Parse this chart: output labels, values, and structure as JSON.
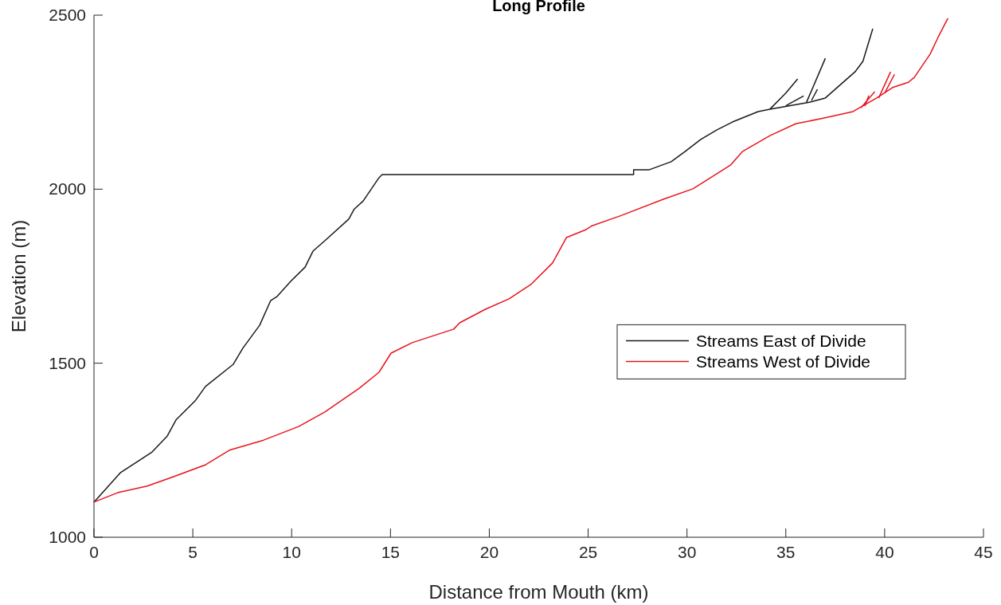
{
  "chart_data": {
    "type": "line",
    "title": "Long Profile",
    "xlabel": "Distance from Mouth (km)",
    "ylabel": "Elevation (m)",
    "xlim": [
      0,
      45
    ],
    "ylim": [
      1000,
      2500
    ],
    "xticks": [
      0,
      5,
      10,
      15,
      20,
      25,
      30,
      35,
      40,
      45
    ],
    "yticks": [
      1000,
      1500,
      2000,
      2500
    ],
    "grid": false,
    "legend": "right",
    "line_style": "solid",
    "marker": "none",
    "series": [
      {
        "name": "Streams East of Divide",
        "color": "#1a1a1a",
        "x": [
          0,
          1.33,
          2.94,
          3.71,
          4.15,
          5.12,
          5.64,
          7.05,
          7.53,
          8.38,
          8.94,
          9.27,
          9.95,
          10.68,
          11.08,
          11.68,
          12.89,
          13.17,
          13.62,
          14.42,
          14.58,
          20,
          27.3,
          27.3,
          28.1,
          29.2,
          29.9,
          30.7,
          31.5,
          32.3,
          33.6,
          34.2,
          36.2,
          37.0,
          38.5,
          38.9,
          39.4
        ],
        "values": [
          1101,
          1185,
          1245,
          1291,
          1337,
          1392,
          1433,
          1497,
          1543,
          1609,
          1680,
          1692,
          1735,
          1776,
          1822,
          1852,
          1914,
          1943,
          1966,
          2033,
          2042,
          2042,
          2042,
          2056,
          2056,
          2079,
          2108,
          2143,
          2170,
          2193,
          2223,
          2230,
          2250,
          2262,
          2337,
          2367,
          2461
        ]
      },
      {
        "name": "Streams West of Divide",
        "color": "#e8141c",
        "x": [
          0,
          1.2,
          2.7,
          4.03,
          5.64,
          6.85,
          8.58,
          10.35,
          11.68,
          13.42,
          14.42,
          15.03,
          16.1,
          18.2,
          18.5,
          19.8,
          21.0,
          22.1,
          23.2,
          23.9,
          24.9,
          25.2,
          26.7,
          28.8,
          30.3,
          31.5,
          32.2,
          32.8,
          34.2,
          35.5,
          36.9,
          38.4,
          39.6,
          40.4,
          41.2,
          41.5,
          42.3,
          42.7,
          43.2
        ],
        "values": [
          1101,
          1128,
          1147,
          1174,
          1208,
          1250,
          1279,
          1318,
          1360,
          1428,
          1474,
          1529,
          1559,
          1598,
          1616,
          1655,
          1685,
          1726,
          1788,
          1861,
          1884,
          1895,
          1925,
          1971,
          2001,
          2044,
          2069,
          2108,
          2154,
          2188,
          2204,
          2223,
          2262,
          2292,
          2307,
          2321,
          2388,
          2436,
          2491
        ]
      },
      {
        "color": "#1a1a1a",
        "x": [
          34.2,
          35.0,
          35.6
        ],
        "values": [
          2230,
          2276,
          2317
        ]
      },
      {
        "color": "#1a1a1a",
        "x": [
          36.05,
          37.0
        ],
        "values": [
          2250,
          2376
        ]
      },
      {
        "color": "#1a1a1a",
        "x": [
          36.3,
          36.6
        ],
        "values": [
          2255,
          2287
        ]
      },
      {
        "color": "#1a1a1a",
        "x": [
          35.0,
          35.9
        ],
        "values": [
          2240,
          2268
        ]
      },
      {
        "color": "#e8141c",
        "x": [
          38.8,
          39.5
        ],
        "values": [
          2234,
          2280
        ]
      },
      {
        "color": "#e8141c",
        "x": [
          39.0,
          39.2
        ],
        "values": [
          2239,
          2269
        ]
      },
      {
        "color": "#e8141c",
        "x": [
          39.7,
          40.3
        ],
        "values": [
          2262,
          2337
        ]
      },
      {
        "color": "#e8141c",
        "x": [
          40.0,
          40.5
        ],
        "values": [
          2276,
          2330
        ]
      }
    ]
  }
}
